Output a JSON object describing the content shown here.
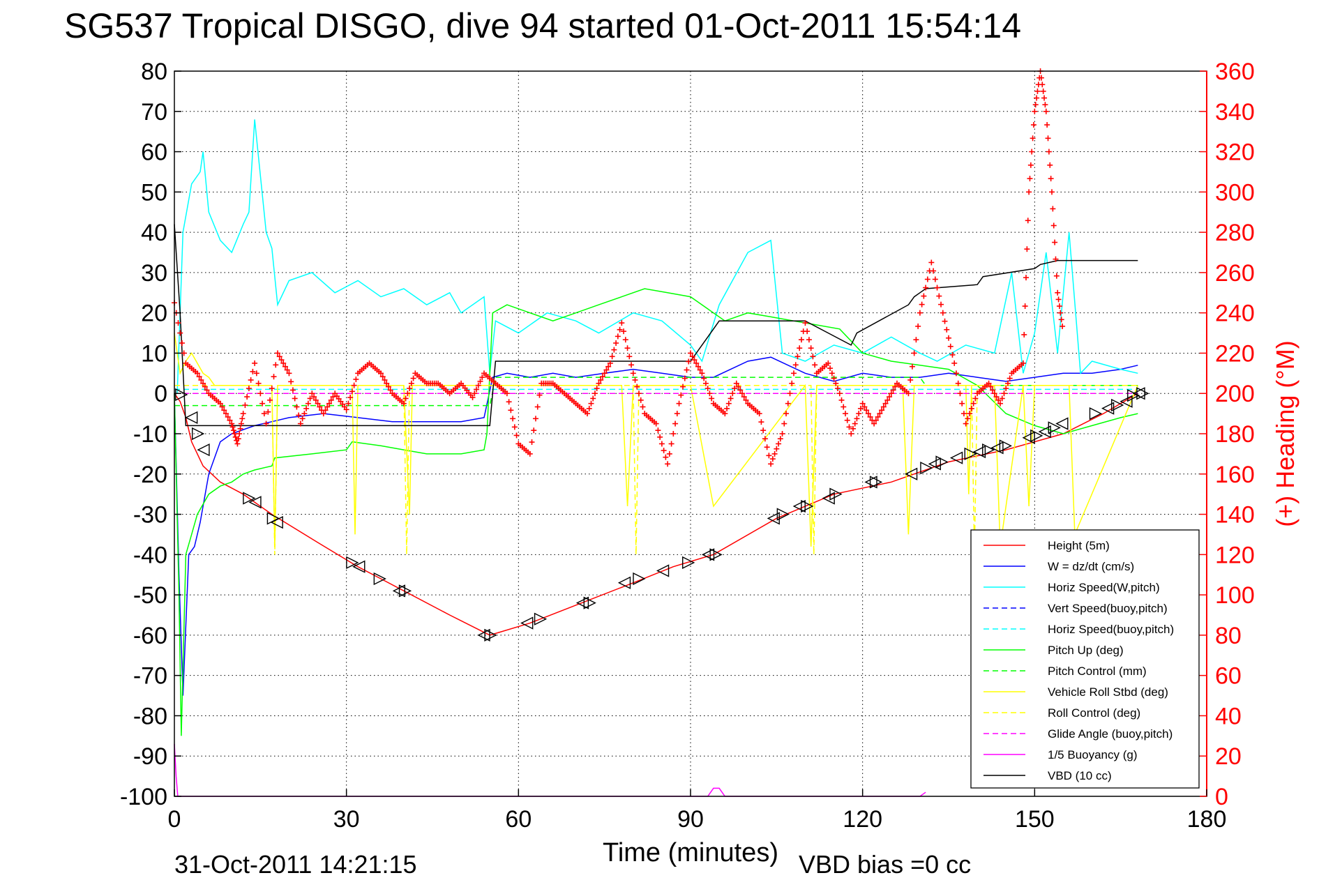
{
  "chart_data": {
    "type": "line",
    "title": "SG537 Tropical DISGO, dive 94 started 01-Oct-2011 15:54:14",
    "xlabel": "Time (minutes)",
    "ylabel": "",
    "y2label": "(+) Heading (°M)",
    "footer_left": "31-Oct-2011 14:21:15",
    "footer_right": "VBD bias =0 cc",
    "xlim": [
      0,
      180
    ],
    "ylim": [
      -100,
      80
    ],
    "y2lim": [
      0,
      360
    ],
    "grid": true,
    "legend_position": "bottom-right",
    "x_ticks": [
      "0",
      "30",
      "60",
      "90",
      "120",
      "150",
      "180"
    ],
    "y_ticks": [
      "80",
      "70",
      "60",
      "50",
      "40",
      "30",
      "20",
      "10",
      "0",
      "-10",
      "-20",
      "-30",
      "-40",
      "-50",
      "-60",
      "-70",
      "-80",
      "-90",
      "-100"
    ],
    "y2_ticks": [
      "360",
      "340",
      "320",
      "300",
      "280",
      "260",
      "240",
      "220",
      "200",
      "180",
      "160",
      "140",
      "120",
      "100",
      "80",
      "60",
      "40",
      "20",
      "0"
    ],
    "colors": {
      "height": "#ff0000",
      "w": "#0000ff",
      "horiz_speed": "#00ffff",
      "pitch": "#00ff00",
      "roll": "#ffff00",
      "glide": "#ff00ff",
      "buoyancy": "#ff00ff",
      "vbd": "#000000",
      "heading": "#ff0000",
      "markers": "#000000"
    },
    "legend": [
      "Height (5m)",
      "W = dz/dt (cm/s)",
      "Horiz Speed(W,pitch)",
      "Vert Speed(buoy,pitch)",
      "Horiz Speed(buoy,pitch)",
      "Pitch Up (deg)",
      "Pitch Control (mm)",
      "Vehicle Roll Stbd (deg)",
      "Roll Control (deg)",
      "Glide Angle (buoy,pitch)",
      "1/5 Buoyancy (g)",
      "VBD (10 cc)"
    ],
    "series": [
      {
        "name": "Height (5m)",
        "style": "solid",
        "x": [
          0,
          1,
          2,
          3,
          5,
          8,
          12,
          17,
          25,
          32,
          36,
          40,
          48,
          55,
          62,
          71,
          80,
          87,
          94,
          105,
          115,
          125,
          135,
          145,
          155,
          162,
          168
        ],
        "y": [
          0,
          -2,
          -6,
          -12,
          -18,
          -22,
          -25,
          -30,
          -37,
          -43,
          -46,
          -49,
          -55,
          -60,
          -57,
          -52,
          -47,
          -43,
          -40,
          -31,
          -25,
          -22,
          -17,
          -14,
          -10,
          -5,
          0
        ]
      },
      {
        "name": "W = dz/dt (cm/s)",
        "style": "solid",
        "x": [
          0,
          0.8,
          1.5,
          2.5,
          3.5,
          4.5,
          6,
          8,
          10,
          14,
          17,
          20,
          26,
          32,
          38,
          44,
          50,
          54,
          55.5,
          58,
          62,
          66,
          70,
          75,
          80,
          85,
          90,
          94,
          100,
          104,
          110,
          115,
          120,
          125,
          130,
          135,
          140,
          145,
          150,
          155,
          160,
          165,
          168
        ],
        "y": [
          0,
          -45,
          -75,
          -40,
          -38,
          -32,
          -20,
          -12,
          -10,
          -8,
          -7,
          -6,
          -5,
          -6,
          -7,
          -7,
          -7,
          -6,
          4,
          5,
          4,
          5,
          4,
          5,
          6,
          5,
          4,
          4,
          8,
          9,
          5,
          3,
          5,
          4,
          4,
          5,
          4,
          3,
          4,
          5,
          5,
          6,
          7
        ]
      },
      {
        "name": "Horiz Speed(W,pitch)",
        "style": "solid",
        "x": [
          0.5,
          1.5,
          3,
          4.5,
          5,
          6,
          8,
          10,
          12,
          13,
          14,
          16,
          17,
          18,
          20,
          24,
          28,
          32,
          36,
          40,
          44,
          48,
          50,
          54,
          55,
          56,
          60,
          65,
          70,
          74,
          80,
          85,
          90,
          92,
          95,
          100,
          104,
          106,
          110,
          115,
          120,
          125,
          130,
          133,
          138,
          143,
          146,
          148,
          150,
          152,
          154,
          156,
          158,
          160,
          165,
          168
        ],
        "y": [
          0,
          40,
          52,
          55,
          60,
          45,
          38,
          35,
          42,
          45,
          68,
          40,
          36,
          22,
          28,
          30,
          25,
          28,
          24,
          26,
          22,
          25,
          20,
          24,
          5,
          18,
          15,
          20,
          18,
          15,
          20,
          18,
          12,
          8,
          22,
          35,
          38,
          10,
          8,
          12,
          10,
          14,
          10,
          8,
          12,
          10,
          30,
          5,
          15,
          35,
          10,
          40,
          5,
          8,
          6,
          5
        ]
      },
      {
        "name": "Vert Speed(buoy,pitch)",
        "style": "dashed",
        "x": [
          0,
          168
        ],
        "y": [
          0,
          0
        ]
      },
      {
        "name": "Horiz Speed(buoy,pitch)",
        "style": "dashed",
        "x": [
          0,
          168
        ],
        "y": [
          1,
          1
        ]
      },
      {
        "name": "Pitch Up (deg)",
        "style": "solid",
        "x": [
          0,
          0.8,
          1.2,
          2,
          3,
          4,
          6,
          8,
          10,
          12,
          14,
          17,
          17.5,
          24,
          30,
          31,
          36,
          40,
          44,
          50,
          54,
          54.5,
          55.5,
          58,
          62,
          66,
          70,
          74,
          78,
          82,
          86,
          90,
          94,
          96,
          100,
          104,
          108,
          112,
          116,
          120,
          125,
          130,
          135,
          140,
          145,
          150,
          155,
          160,
          165,
          168
        ],
        "y": [
          0,
          -50,
          -85,
          -40,
          -35,
          -30,
          -25,
          -23,
          -22,
          -20,
          -19,
          -18,
          -16,
          -15,
          -14,
          -12,
          -13,
          -14,
          -15,
          -15,
          -14,
          -10,
          20,
          22,
          20,
          18,
          20,
          22,
          24,
          26,
          25,
          24,
          20,
          18,
          20,
          19,
          18,
          17,
          16,
          10,
          8,
          7,
          6,
          2,
          -5,
          -8,
          -10,
          -8,
          -6,
          -5
        ]
      },
      {
        "name": "Pitch Control (mm)",
        "style": "dashed",
        "x": [
          0,
          55,
          56,
          130,
          131,
          168
        ],
        "y": [
          -3,
          -3,
          4,
          4,
          2,
          2
        ]
      },
      {
        "name": "Vehicle Roll Stbd (deg)",
        "style": "solid",
        "x": [
          0,
          1,
          2,
          3,
          5,
          6,
          7,
          8,
          17,
          17.5,
          18,
          31,
          31.5,
          32,
          40,
          41,
          41.5,
          55,
          78,
          79,
          80,
          81,
          90,
          94,
          110,
          111,
          112,
          127,
          128,
          129,
          138,
          138.5,
          139,
          143,
          144,
          148,
          149,
          150,
          156,
          157,
          168
        ],
        "y": [
          15,
          5,
          8,
          10,
          5,
          4,
          2,
          2,
          2,
          -38,
          2,
          2,
          -35,
          2,
          2,
          -30,
          2,
          2,
          2,
          -28,
          2,
          2,
          2,
          -28,
          2,
          -38,
          2,
          2,
          -35,
          2,
          2,
          -25,
          2,
          2,
          -38,
          2,
          -28,
          2,
          2,
          -35,
          2
        ]
      },
      {
        "name": "Roll Control (deg)",
        "style": "dashed",
        "x": [
          0,
          17,
          17.5,
          18,
          40,
          40.5,
          41,
          80,
          80.5,
          81,
          111,
          111.5,
          112,
          139,
          139.5,
          140,
          168
        ],
        "y": [
          2,
          2,
          -40,
          2,
          2,
          -40,
          2,
          2,
          -40,
          2,
          2,
          -40,
          2,
          2,
          -40,
          2,
          2
        ]
      },
      {
        "name": "Glide Angle (buoy,pitch)",
        "style": "dashed",
        "x": [
          0,
          168
        ],
        "y": [
          0,
          0
        ]
      },
      {
        "name": "1/5 Buoyancy (g)",
        "style": "solid",
        "x": [
          0,
          0.3,
          0.6,
          93,
          94,
          95,
          96,
          130,
          131
        ],
        "y": [
          -87,
          -95,
          -100,
          -100,
          -98,
          -98,
          -100,
          -100,
          -99
        ]
      },
      {
        "name": "VBD (10 cc)",
        "style": "solid",
        "x": [
          0,
          1,
          2,
          55,
          55.5,
          56,
          90,
          91,
          93,
          94,
          95,
          100,
          110,
          118,
          119,
          128,
          129,
          130,
          131,
          140,
          141,
          150,
          151,
          154,
          155,
          168
        ],
        "y": [
          42,
          20,
          -8,
          -8,
          0,
          8,
          8,
          10,
          14,
          16,
          18,
          18,
          18,
          12,
          15,
          22,
          24,
          25,
          26,
          27,
          29,
          31,
          32,
          33,
          33,
          33
        ]
      },
      {
        "name": "Heading",
        "style": "markers",
        "x": [
          0,
          2,
          4,
          6,
          8,
          10,
          11,
          12,
          14,
          16,
          18,
          20,
          22,
          24,
          26,
          28,
          30,
          32,
          34,
          36,
          38,
          40,
          42,
          44,
          46,
          48,
          50,
          52,
          54,
          56,
          58,
          60,
          62,
          64,
          66,
          68,
          70,
          72,
          74,
          76,
          78,
          80,
          82,
          84,
          86,
          88,
          90,
          92,
          94,
          96,
          98,
          100,
          102,
          104,
          106,
          108,
          110,
          112,
          114,
          116,
          118,
          120,
          122,
          124,
          126,
          128,
          130,
          132,
          134,
          136,
          138,
          140,
          142,
          144,
          146,
          148,
          149,
          150,
          151,
          152,
          153,
          154,
          155
        ],
        "y": [
          245,
          215,
          210,
          200,
          195,
          185,
          175,
          190,
          215,
          185,
          220,
          210,
          185,
          200,
          190,
          200,
          192,
          210,
          215,
          210,
          200,
          195,
          210,
          205,
          205,
          200,
          205,
          198,
          210,
          205,
          200,
          175,
          170,
          205,
          205,
          200,
          195,
          190,
          205,
          215,
          235,
          210,
          190,
          185,
          165,
          195,
          220,
          210,
          195,
          190,
          205,
          195,
          190,
          165,
          180,
          210,
          235,
          210,
          215,
          200,
          180,
          195,
          185,
          195,
          205,
          200,
          240,
          265,
          240,
          215,
          185,
          200,
          205,
          195,
          210,
          215,
          300,
          340,
          360,
          340,
          300,
          250,
          230
        ]
      }
    ],
    "markers": [
      [
        1.2,
        -0.3
      ],
      [
        3.0,
        -6
      ],
      [
        4.1,
        -10
      ],
      [
        5.1,
        -14
      ],
      [
        13.0,
        -26
      ],
      [
        14.1,
        -27
      ],
      [
        17.2,
        -31
      ],
      [
        17.9,
        -32
      ],
      [
        31.0,
        -42
      ],
      [
        32.2,
        -43
      ],
      [
        35.8,
        -46
      ],
      [
        39.2,
        -49
      ],
      [
        40.2,
        -49
      ],
      [
        54.0,
        -60
      ],
      [
        55.1,
        -60
      ],
      [
        61.5,
        -57
      ],
      [
        63.8,
        -56
      ],
      [
        71.2,
        -52
      ],
      [
        72.4,
        -52
      ],
      [
        78.5,
        -47
      ],
      [
        81.0,
        -46
      ],
      [
        85.2,
        -44
      ],
      [
        89.6,
        -42
      ],
      [
        93.1,
        -40
      ],
      [
        94.4,
        -40
      ],
      [
        104.5,
        -31
      ],
      [
        106.1,
        -30
      ],
      [
        109.0,
        -28
      ],
      [
        110.3,
        -28
      ],
      [
        114.1,
        -26
      ],
      [
        115.3,
        -25
      ],
      [
        121.5,
        -22
      ],
      [
        122.3,
        -22
      ],
      [
        128.5,
        -20
      ],
      [
        131.1,
        -18.5
      ],
      [
        132.6,
        -17.5
      ],
      [
        133.8,
        -17
      ],
      [
        136.4,
        -16
      ],
      [
        138.8,
        -15
      ],
      [
        140.4,
        -14.5
      ],
      [
        141.9,
        -14
      ],
      [
        143.5,
        -13.5
      ],
      [
        144.9,
        -13
      ],
      [
        149.0,
        -11
      ],
      [
        150.3,
        -10.5
      ],
      [
        151.8,
        -9.5
      ],
      [
        153.4,
        -8.5
      ],
      [
        154.8,
        -7.5
      ],
      [
        160.6,
        -5
      ],
      [
        162.8,
        -3.7
      ],
      [
        164.4,
        -2.9
      ],
      [
        166.0,
        -2
      ],
      [
        167.2,
        -0.5
      ],
      [
        168.2,
        0
      ],
      [
        168.8,
        0
      ]
    ]
  }
}
